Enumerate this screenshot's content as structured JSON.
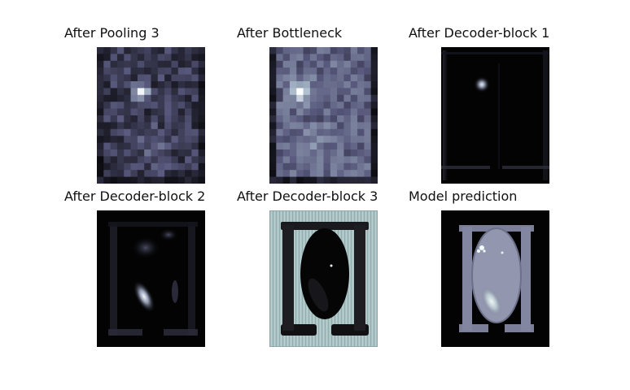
{
  "figure": {
    "panels": [
      {
        "title": "After Pooling 3"
      },
      {
        "title": "After Bottleneck"
      },
      {
        "title": "After Decoder-block 1"
      },
      {
        "title": "After Decoder-block 2"
      },
      {
        "title": "After Decoder-block 3"
      },
      {
        "title": "Model prediction"
      }
    ]
  },
  "colormap": "bone"
}
